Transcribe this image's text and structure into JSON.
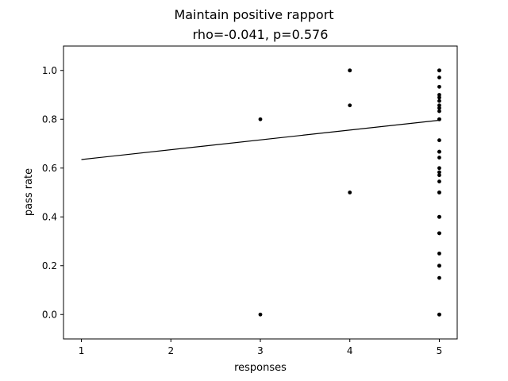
{
  "chart_data": {
    "type": "scatter",
    "title": "Maintain positive rapport",
    "subtitle": "rho=-0.041, p=0.576",
    "xlabel": "responses",
    "ylabel": "pass rate",
    "xlim": [
      0.8,
      5.2
    ],
    "ylim": [
      -0.1,
      1.1
    ],
    "xticks": [
      1,
      2,
      3,
      4,
      5
    ],
    "yticks": [
      0.0,
      0.2,
      0.4,
      0.6,
      0.8,
      1.0
    ],
    "xtick_labels": [
      "1",
      "2",
      "3",
      "4",
      "5"
    ],
    "ytick_labels": [
      "0.0",
      "0.2",
      "0.4",
      "0.6",
      "0.8",
      "1.0"
    ],
    "grid": false,
    "colors": {
      "points": "#000000",
      "line": "#000000",
      "axes": "#000000"
    },
    "points": [
      {
        "x": 3,
        "y": 0.8
      },
      {
        "x": 3,
        "y": 0.0
      },
      {
        "x": 4,
        "y": 1.0
      },
      {
        "x": 4,
        "y": 1.0
      },
      {
        "x": 4,
        "y": 0.857
      },
      {
        "x": 4,
        "y": 0.5
      },
      {
        "x": 5,
        "y": 1.0
      },
      {
        "x": 5,
        "y": 1.0
      },
      {
        "x": 5,
        "y": 0.971
      },
      {
        "x": 5,
        "y": 0.933
      },
      {
        "x": 5,
        "y": 0.9
      },
      {
        "x": 5,
        "y": 0.889
      },
      {
        "x": 5,
        "y": 0.875
      },
      {
        "x": 5,
        "y": 0.857
      },
      {
        "x": 5,
        "y": 0.846
      },
      {
        "x": 5,
        "y": 0.833
      },
      {
        "x": 5,
        "y": 0.8
      },
      {
        "x": 5,
        "y": 0.8
      },
      {
        "x": 5,
        "y": 0.714
      },
      {
        "x": 5,
        "y": 0.667
      },
      {
        "x": 5,
        "y": 0.667
      },
      {
        "x": 5,
        "y": 0.643
      },
      {
        "x": 5,
        "y": 0.6
      },
      {
        "x": 5,
        "y": 0.583
      },
      {
        "x": 5,
        "y": 0.571
      },
      {
        "x": 5,
        "y": 0.545
      },
      {
        "x": 5,
        "y": 0.5
      },
      {
        "x": 5,
        "y": 0.5
      },
      {
        "x": 5,
        "y": 0.4
      },
      {
        "x": 5,
        "y": 0.4
      },
      {
        "x": 5,
        "y": 0.333
      },
      {
        "x": 5,
        "y": 0.333
      },
      {
        "x": 5,
        "y": 0.25
      },
      {
        "x": 5,
        "y": 0.2
      },
      {
        "x": 5,
        "y": 0.2
      },
      {
        "x": 5,
        "y": 0.15
      },
      {
        "x": 5,
        "y": 0.0
      },
      {
        "x": 5,
        "y": 0.0
      }
    ],
    "fit_line": {
      "x": [
        1,
        5
      ],
      "y": [
        0.635,
        0.796
      ]
    }
  }
}
